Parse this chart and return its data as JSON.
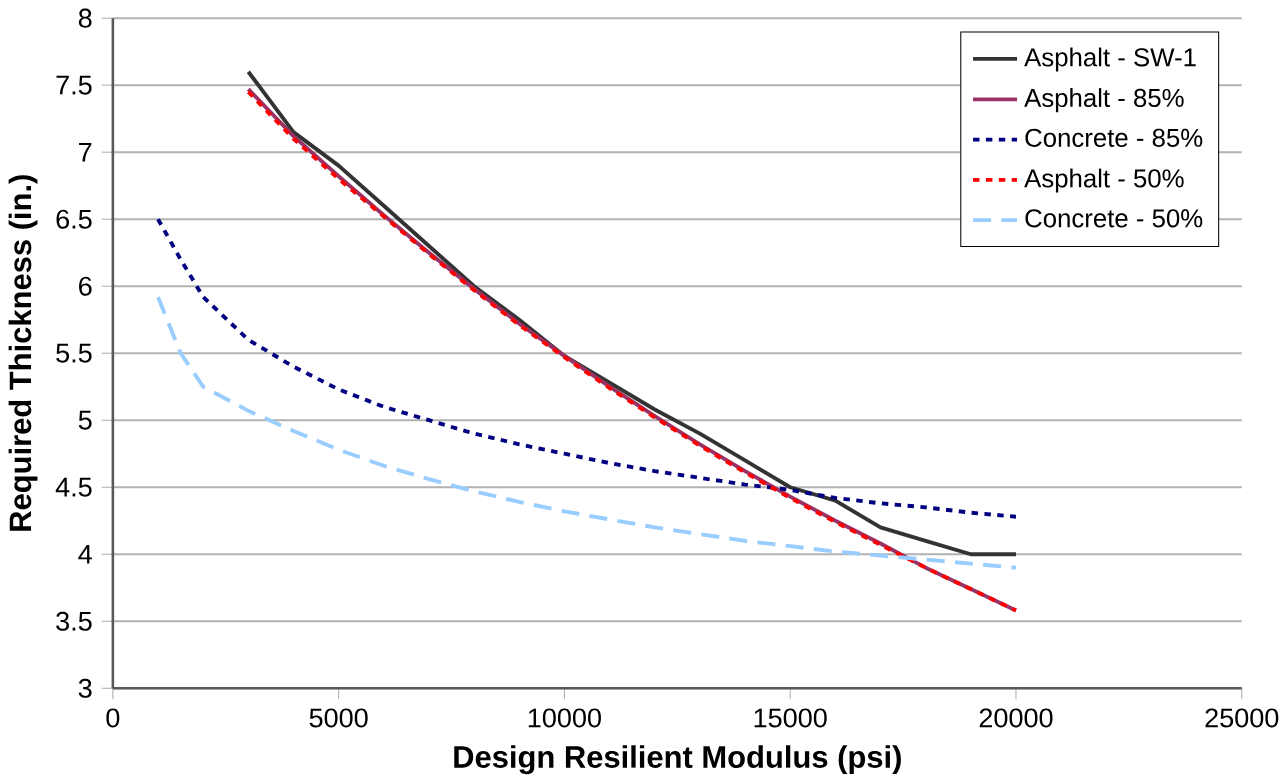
{
  "chart_data": {
    "type": "line",
    "xlabel": "Design Resilient Modulus (psi)",
    "ylabel": "Required Thickness (in.)",
    "xlim": [
      0,
      25000
    ],
    "xticks": [
      0,
      5000,
      10000,
      15000,
      20000,
      25000
    ],
    "ylim": [
      3,
      8
    ],
    "yticks": [
      3,
      3.5,
      4,
      4.5,
      5,
      5.5,
      6,
      6.5,
      7,
      7.5,
      8
    ],
    "grid": "y",
    "legend": "top right",
    "marker": "none",
    "series": [
      {
        "name": "Asphalt - SW-1",
        "color": "#333333",
        "line_style": "solid",
        "x": [
          3000,
          4000,
          5000,
          6000,
          7000,
          8000,
          9000,
          10000,
          11000,
          12000,
          13000,
          14000,
          15000,
          16000,
          17000,
          18000,
          19000,
          19500,
          20000
        ],
        "values": [
          7.6,
          7.15,
          6.9,
          6.6,
          6.3,
          6.0,
          5.75,
          5.48,
          5.28,
          5.08,
          4.9,
          4.7,
          4.5,
          4.4,
          4.2,
          4.1,
          4.0,
          4.0,
          4.0
        ]
      },
      {
        "name": "Asphalt - 85%",
        "color": "#993366",
        "line_style": "solid",
        "x": [
          3000,
          4000,
          5000,
          6000,
          7000,
          8000,
          9000,
          10000,
          11000,
          12000,
          13000,
          14000,
          15000,
          16000,
          17000,
          18000,
          19000,
          20000
        ],
        "values": [
          7.47,
          7.12,
          6.82,
          6.53,
          6.25,
          5.98,
          5.72,
          5.48,
          5.25,
          5.03,
          4.82,
          4.62,
          4.43,
          4.25,
          4.08,
          3.9,
          3.74,
          3.58
        ]
      },
      {
        "name": "Concrete - 85%",
        "color": "#000080",
        "line_style": "dotted",
        "x": [
          1000,
          1500,
          2000,
          3000,
          4000,
          5000,
          6000,
          7000,
          8000,
          9000,
          10000,
          11000,
          12000,
          13000,
          14000,
          15000,
          16000,
          17000,
          18000,
          19000,
          20000
        ],
        "values": [
          6.5,
          6.2,
          5.92,
          5.6,
          5.4,
          5.23,
          5.1,
          5.0,
          4.9,
          4.82,
          4.75,
          4.68,
          4.62,
          4.57,
          4.52,
          4.48,
          4.42,
          4.38,
          4.35,
          4.31,
          4.28
        ]
      },
      {
        "name": "Asphalt - 50%",
        "color": "#ff0000",
        "line_style": "dotted",
        "x": [
          3000,
          4000,
          5000,
          6000,
          7000,
          8000,
          9000,
          10000,
          11000,
          12000,
          13000,
          14000,
          15000,
          16000,
          17000,
          18000,
          19000,
          20000
        ],
        "values": [
          7.45,
          7.1,
          6.8,
          6.52,
          6.24,
          5.97,
          5.71,
          5.47,
          5.24,
          5.02,
          4.81,
          4.61,
          4.42,
          4.24,
          4.07,
          3.9,
          3.74,
          3.58
        ]
      },
      {
        "name": "Concrete - 50%",
        "color": "#99ccff",
        "line_style": "dashed",
        "x": [
          1000,
          1500,
          2000,
          3000,
          4000,
          5000,
          6000,
          7000,
          8000,
          9000,
          10000,
          11000,
          12000,
          13000,
          14000,
          15000,
          16000,
          17000,
          18000,
          19000,
          20000
        ],
        "values": [
          5.92,
          5.5,
          5.25,
          5.07,
          4.92,
          4.78,
          4.66,
          4.56,
          4.47,
          4.39,
          4.32,
          4.26,
          4.2,
          4.15,
          4.1,
          4.06,
          4.02,
          3.99,
          3.96,
          3.93,
          3.9
        ]
      }
    ]
  }
}
